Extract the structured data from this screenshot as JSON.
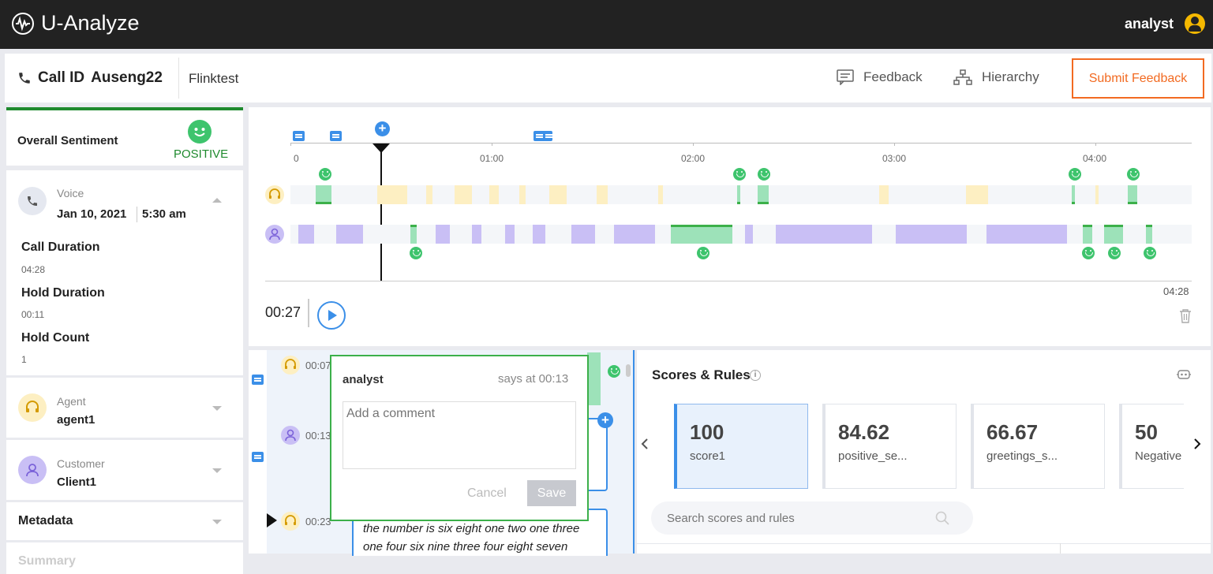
{
  "app": {
    "title": "U-Analyze",
    "user": "analyst"
  },
  "header": {
    "call_id_label": "Call ID",
    "call_id": "Auseng22",
    "tenant": "Flinktest",
    "feedback_label": "Feedback",
    "hierarchy_label": "Hierarchy",
    "submit_label": "Submit Feedback"
  },
  "sidebar": {
    "sentiment_label": "Overall Sentiment",
    "sentiment_value": "POSITIVE",
    "voice_label": "Voice",
    "date": "Jan 10, 2021",
    "time": "5:30 am",
    "call_duration_label": "Call Duration",
    "call_duration": "04:28",
    "hold_duration_label": "Hold Duration",
    "hold_duration": "00:11",
    "hold_count_label": "Hold Count",
    "hold_count": "1",
    "agent_label": "Agent",
    "agent": "agent1",
    "customer_label": "Customer",
    "customer": "Client1",
    "metadata_label": "Metadata",
    "summary_label": "Summary"
  },
  "timeline": {
    "ticks": [
      "0",
      "01:00",
      "02:00",
      "03:00",
      "04:00"
    ],
    "current_time": "00:27",
    "total_time": "04:28",
    "playhead_seconds": 27
  },
  "transcript": {
    "rows": [
      {
        "speaker": "agent",
        "time": "00:07"
      },
      {
        "speaker": "customer",
        "time": "00:13"
      },
      {
        "speaker": "agent",
        "time": "00:23"
      }
    ],
    "visible_text": "the number is six eight one two one three one four six nine three four eight seven"
  },
  "comment_popup": {
    "author": "analyst",
    "says_at": "says at 00:13",
    "placeholder": "Add a comment",
    "cancel_label": "Cancel",
    "save_label": "Save"
  },
  "scores": {
    "title": "Scores & Rules",
    "search_placeholder": "Search scores and rules",
    "cards": [
      {
        "value": "100",
        "name": "score1"
      },
      {
        "value": "84.62",
        "name": "positive_se..."
      },
      {
        "value": "66.67",
        "name": "greetings_s..."
      },
      {
        "value": "50",
        "name": "Negative"
      }
    ]
  },
  "colors": {
    "agent_segment": "#fdefc2",
    "customer_segment": "#c9bff5",
    "positive_segment": "#9de2b9",
    "accent": "#3b8fe8",
    "submit": "#f26a21",
    "positive": "#3cb04a"
  }
}
